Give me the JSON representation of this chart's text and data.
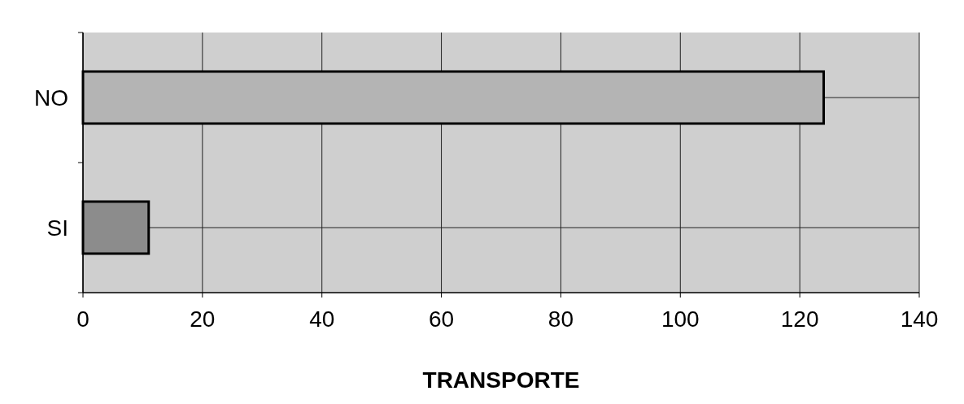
{
  "chart_data": {
    "type": "bar",
    "orientation": "horizontal",
    "xlabel": "TRANSPORTE",
    "categories": [
      "NO",
      "SI"
    ],
    "values": [
      124,
      11
    ],
    "colors": [
      "#b4b4b4",
      "#8c8c8c"
    ],
    "xlim": [
      0,
      140
    ],
    "xticks": [
      0,
      20,
      40,
      60,
      80,
      100,
      120,
      140
    ],
    "grid": true
  }
}
